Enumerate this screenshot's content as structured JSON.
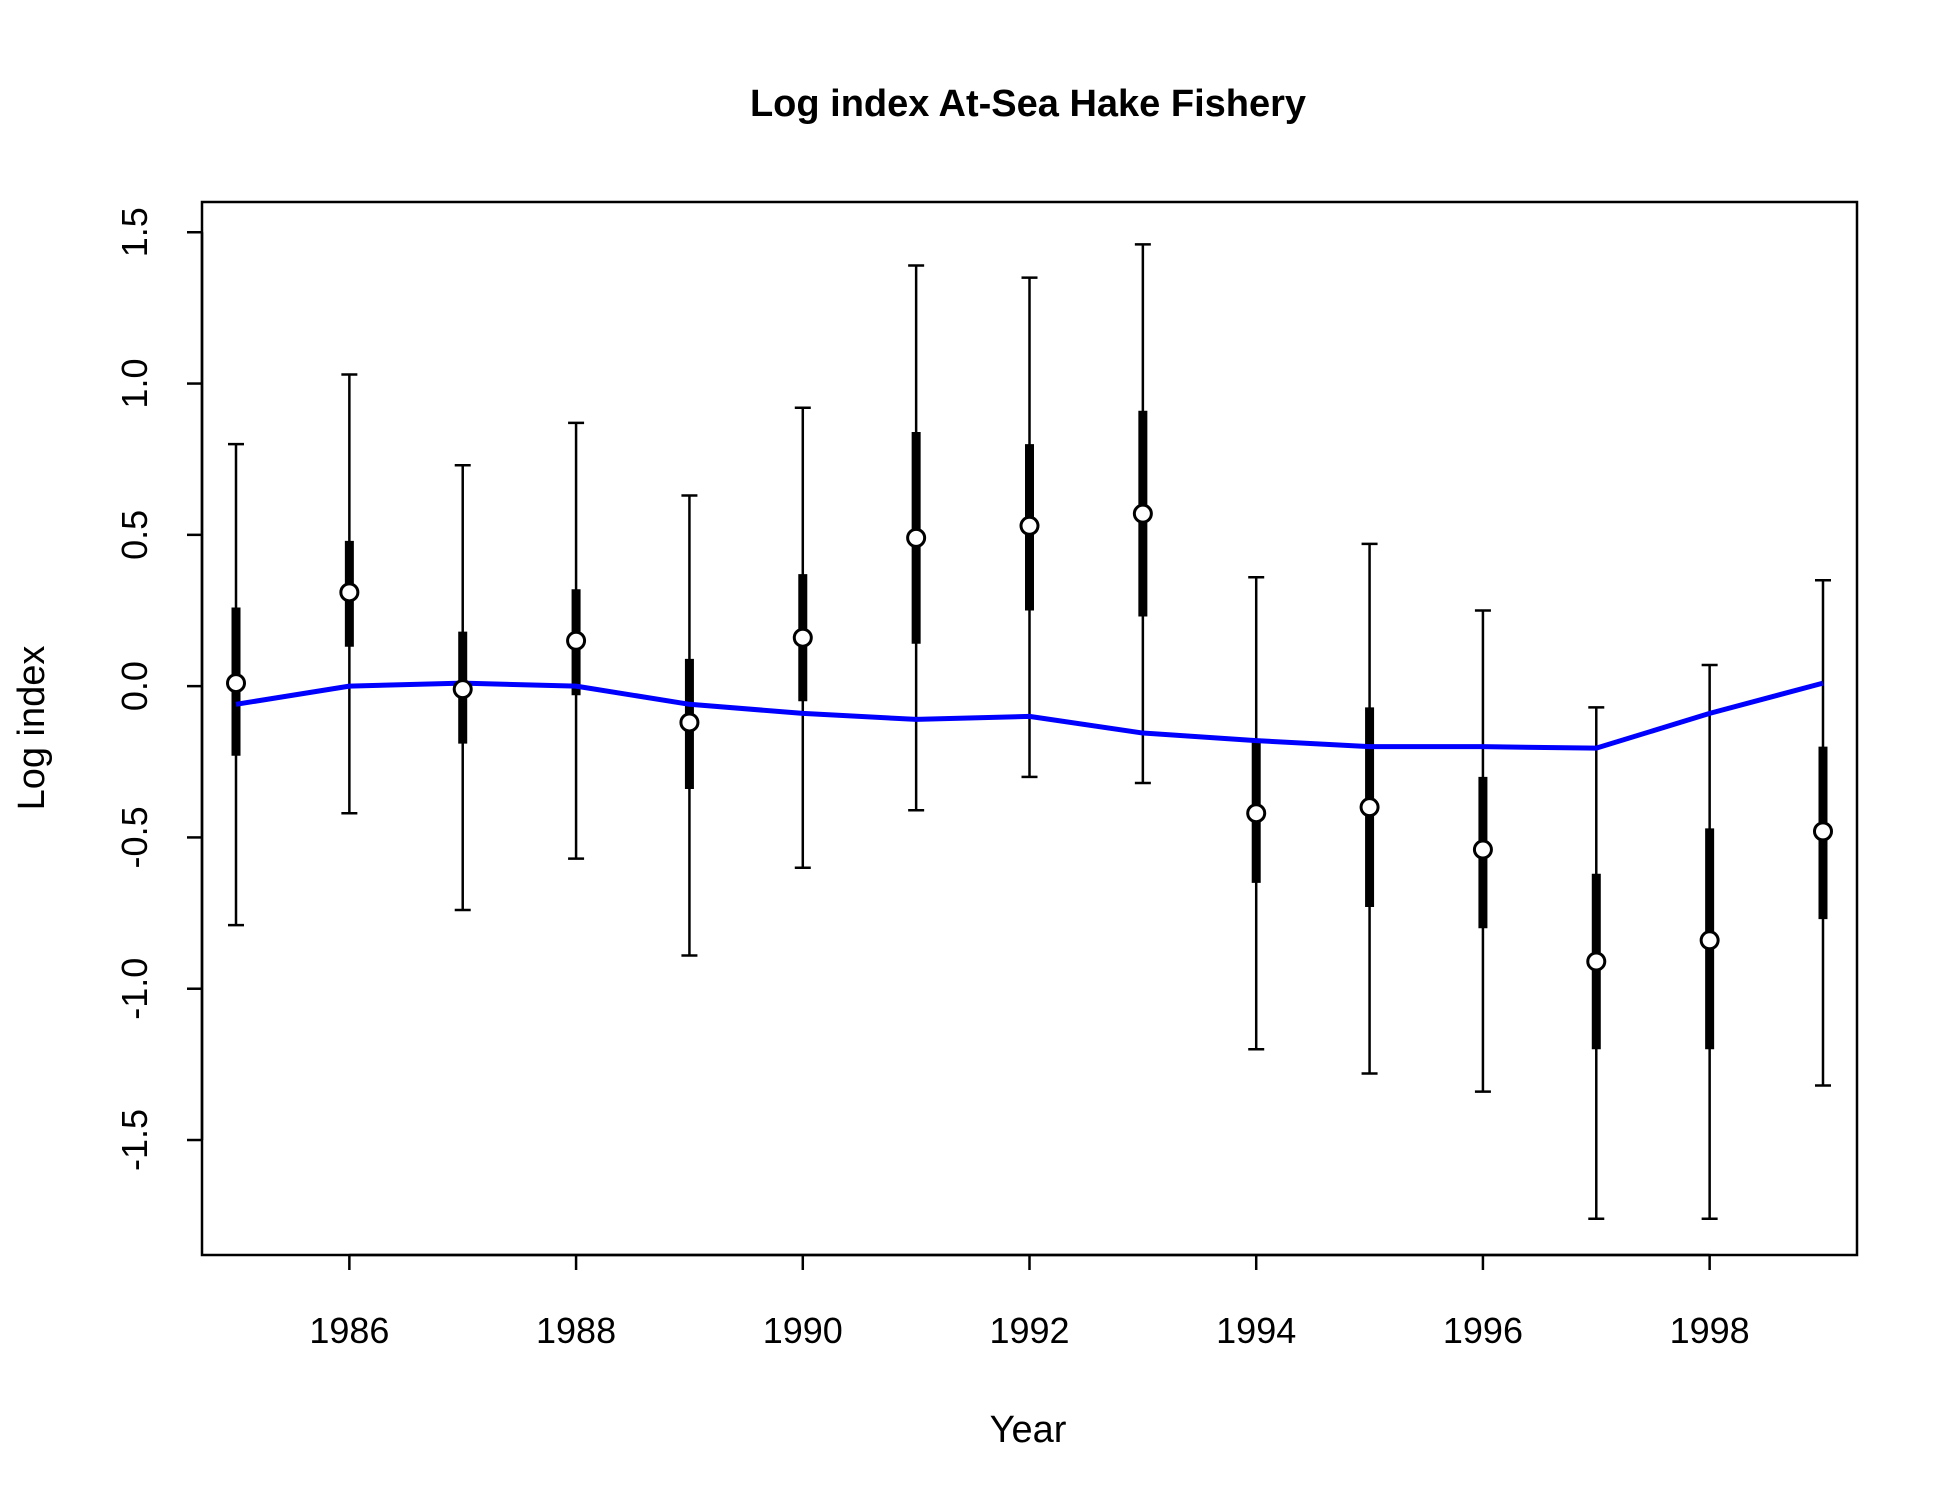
{
  "chart_data": {
    "type": "line",
    "title": "Log index At-Sea Hake Fishery",
    "xlabel": "Year",
    "ylabel": "Log index",
    "xlim": [
      1984.7,
      1999.3
    ],
    "ylim": [
      -1.88,
      1.6
    ],
    "x_ticks": [
      1986,
      1988,
      1990,
      1992,
      1994,
      1996,
      1998
    ],
    "y_ticks": [
      -1.5,
      -1.0,
      -0.5,
      0.0,
      0.5,
      1.0,
      1.5
    ],
    "x_tick_labels": [
      "1986",
      "1988",
      "1990",
      "1992",
      "1994",
      "1996",
      "1998"
    ],
    "y_tick_labels": [
      "-1.5",
      "-1.0",
      "-0.5",
      "0.0",
      "0.5",
      "1.0",
      "1.5"
    ],
    "grid": false,
    "colors": {
      "expected_line": "#0000ff",
      "observed": "#000000",
      "point_fill": "#ffffff"
    },
    "x": [
      1985,
      1986,
      1987,
      1988,
      1989,
      1990,
      1991,
      1992,
      1993,
      1994,
      1995,
      1996,
      1997,
      1998,
      1999
    ],
    "series": [
      {
        "kind": "expected-line",
        "values": [
          -0.06,
          0.0,
          0.01,
          0.0,
          -0.06,
          -0.09,
          -0.11,
          -0.1,
          -0.155,
          -0.18,
          -0.2,
          -0.2,
          -0.205,
          -0.09,
          0.01
        ]
      },
      {
        "kind": "observed-points",
        "values": [
          0.01,
          0.31,
          -0.01,
          0.15,
          -0.12,
          0.16,
          0.49,
          0.53,
          0.57,
          -0.42,
          -0.4,
          -0.54,
          -0.91,
          -0.84,
          -0.48
        ],
        "inner_lower": [
          -0.23,
          0.13,
          -0.19,
          -0.03,
          -0.34,
          -0.05,
          0.14,
          0.25,
          0.23,
          -0.65,
          -0.73,
          -0.8,
          -1.2,
          -1.2,
          -0.77
        ],
        "inner_upper": [
          0.26,
          0.48,
          0.18,
          0.32,
          0.09,
          0.37,
          0.84,
          0.8,
          0.91,
          -0.18,
          -0.07,
          -0.3,
          -0.62,
          -0.47,
          -0.2
        ],
        "outer_lower": [
          -0.79,
          -0.42,
          -0.74,
          -0.57,
          -0.89,
          -0.6,
          -0.41,
          -0.3,
          -0.32,
          -1.2,
          -1.28,
          -1.34,
          -1.76,
          -1.76,
          -1.32
        ],
        "outer_upper": [
          0.8,
          1.03,
          0.73,
          0.87,
          0.63,
          0.92,
          1.39,
          1.35,
          1.46,
          0.36,
          0.47,
          0.25,
          -0.07,
          0.07,
          0.35
        ]
      }
    ]
  }
}
